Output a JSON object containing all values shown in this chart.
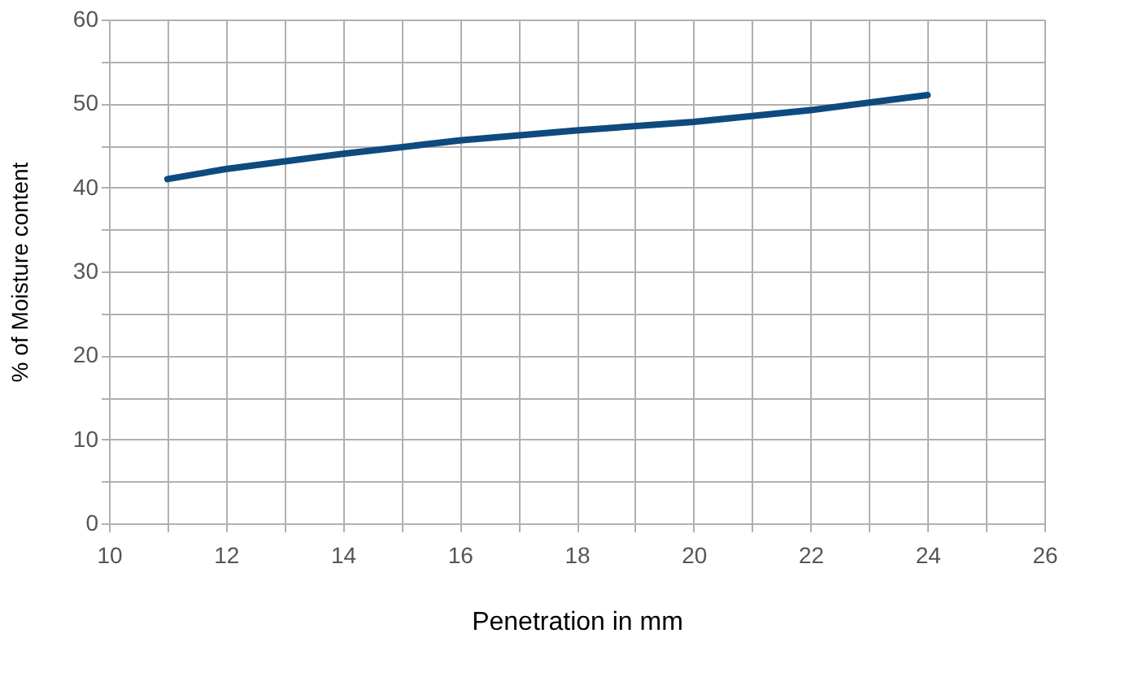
{
  "chart_data": {
    "type": "line",
    "xlabel": "Penetration in mm",
    "ylabel": "% of  Moisture content",
    "x": [
      11,
      12,
      14,
      16,
      18,
      20,
      22,
      24
    ],
    "series": [
      {
        "color": "#0e4a7e",
        "values": [
          41,
          42.2,
          44,
          45.6,
          46.8,
          47.8,
          49.2,
          51
        ]
      }
    ],
    "xlim": [
      10,
      26
    ],
    "ylim": [
      0,
      60
    ],
    "xticks": [
      10,
      {
        "value": 11,
        "label": null
      },
      12,
      {
        "value": 13,
        "label": null
      },
      14,
      {
        "value": 15,
        "label": null
      },
      16,
      {
        "value": 17,
        "label": null
      },
      18,
      {
        "value": 19,
        "label": null
      },
      20,
      {
        "value": 21,
        "label": null
      },
      22,
      {
        "value": 23,
        "label": null
      },
      24,
      {
        "value": 25,
        "label": null
      },
      26
    ],
    "yticks": [
      0,
      {
        "value": 5,
        "label": null
      },
      10,
      {
        "value": 15,
        "label": null
      },
      20,
      {
        "value": 25,
        "label": null
      },
      30,
      {
        "value": 35,
        "label": null
      },
      40,
      {
        "value": 45,
        "label": null
      },
      50,
      {
        "value": 55,
        "label": null
      },
      60
    ],
    "grid": true,
    "marker": "none",
    "line_style": "solid"
  }
}
